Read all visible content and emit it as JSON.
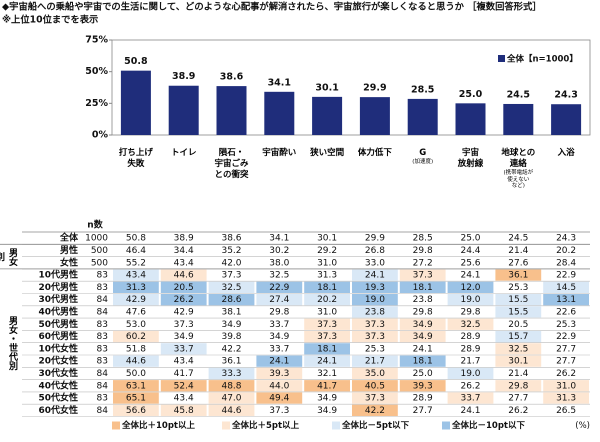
{
  "header": {
    "title": "◆宇宙船への乗船や宇宙での生活に関して、どのような心配事が解消されたら、宇宙旅行が楽しくなると思うか ［複数回答形式］",
    "note": "※上位10位までを表示"
  },
  "chart_data": {
    "type": "bar",
    "categories": [
      "打ち上げ\n失敗",
      "トイレ",
      "隕石・\n宇宙ごみ\nとの衝突",
      "宇宙酔い",
      "狭い空間",
      "体力低下",
      "G",
      "宇宙\n放射線",
      "地球との\n連絡",
      "入浴"
    ],
    "category_notes": [
      null,
      null,
      null,
      null,
      null,
      null,
      "(加速度)",
      null,
      "(携帯電話が\n使えない\nなど)",
      null
    ],
    "series": [
      {
        "name": "全体【n=1000】",
        "color": "#1f2d7b",
        "values": [
          50.8,
          38.9,
          38.6,
          34.1,
          30.1,
          29.9,
          28.5,
          25.0,
          24.5,
          24.3
        ],
        "value_labels": [
          "50.8",
          "38.9",
          "38.6",
          "34.1",
          "30.1",
          "29.9",
          "28.5",
          "25.0",
          "24.5",
          "24.3"
        ]
      }
    ],
    "ylim": [
      0,
      75
    ],
    "yticks": [
      {
        "value": 0,
        "label": "0%"
      },
      {
        "value": 25,
        "label": "25%"
      },
      {
        "value": 50,
        "label": "50%"
      },
      {
        "value": 75,
        "label": "75%"
      }
    ],
    "legend": "top-right"
  },
  "table": {
    "n_header": "n数",
    "total": {
      "label": "全体",
      "n": 1000,
      "values": [
        "50.8",
        "38.9",
        "38.6",
        "34.1",
        "30.1",
        "29.9",
        "28.5",
        "25.0",
        "24.5",
        "24.3"
      ]
    },
    "groups": [
      {
        "label": "男女別",
        "rows": [
          {
            "label": "男性",
            "n": 500,
            "values": [
              "46.4",
              "34.4",
              "35.2",
              "30.2",
              "29.2",
              "26.8",
              "29.8",
              "24.4",
              "21.4",
              "20.2"
            ]
          },
          {
            "label": "女性",
            "n": 500,
            "values": [
              "55.2",
              "43.4",
              "42.0",
              "38.0",
              "31.0",
              "33.0",
              "27.2",
              "25.6",
              "27.6",
              "28.4"
            ]
          }
        ]
      },
      {
        "label": "男女・世代別",
        "rows": [
          {
            "label": "10代男性",
            "n": 83,
            "values": [
              "43.4",
              "44.6",
              "37.3",
              "32.5",
              "31.3",
              "24.1",
              "37.3",
              "24.1",
              "36.1",
              "22.9"
            ]
          },
          {
            "label": "20代男性",
            "n": 83,
            "values": [
              "31.3",
              "20.5",
              "32.5",
              "22.9",
              "18.1",
              "19.3",
              "18.1",
              "12.0",
              "25.3",
              "14.5"
            ]
          },
          {
            "label": "30代男性",
            "n": 84,
            "values": [
              "42.9",
              "26.2",
              "28.6",
              "27.4",
              "20.2",
              "19.0",
              "23.8",
              "19.0",
              "15.5",
              "13.1"
            ]
          },
          {
            "label": "40代男性",
            "n": 84,
            "values": [
              "47.6",
              "42.9",
              "38.1",
              "29.8",
              "31.0",
              "23.8",
              "29.8",
              "29.8",
              "15.5",
              "22.6"
            ]
          },
          {
            "label": "50代男性",
            "n": 83,
            "values": [
              "53.0",
              "37.3",
              "34.9",
              "33.7",
              "37.3",
              "37.3",
              "34.9",
              "32.5",
              "20.5",
              "25.3"
            ]
          },
          {
            "label": "60代男性",
            "n": 83,
            "values": [
              "60.2",
              "34.9",
              "39.8",
              "34.9",
              "37.3",
              "37.3",
              "34.9",
              "28.9",
              "15.7",
              "22.9"
            ]
          },
          {
            "label": "10代女性",
            "n": 83,
            "values": [
              "51.8",
              "33.7",
              "42.2",
              "33.7",
              "18.1",
              "25.3",
              "24.1",
              "28.9",
              "32.5",
              "27.7"
            ]
          },
          {
            "label": "20代女性",
            "n": 83,
            "values": [
              "44.6",
              "43.4",
              "36.1",
              "24.1",
              "24.1",
              "21.7",
              "18.1",
              "21.7",
              "30.1",
              "27.7"
            ]
          },
          {
            "label": "30代女性",
            "n": 84,
            "values": [
              "50.0",
              "41.7",
              "33.3",
              "39.3",
              "32.1",
              "35.0",
              "25.0",
              "19.0",
              "21.4",
              "26.2"
            ]
          },
          {
            "label": "40代女性",
            "n": 84,
            "values": [
              "63.1",
              "52.4",
              "48.8",
              "44.0",
              "41.7",
              "40.5",
              "39.3",
              "26.2",
              "29.8",
              "31.0"
            ]
          },
          {
            "label": "50代女性",
            "n": 83,
            "values": [
              "65.1",
              "43.4",
              "47.0",
              "49.4",
              "34.9",
              "37.3",
              "28.9",
              "33.7",
              "27.7",
              "31.3"
            ]
          },
          {
            "label": "60代女性",
            "n": 84,
            "values": [
              "56.6",
              "45.8",
              "44.6",
              "37.3",
              "34.9",
              "42.2",
              "27.7",
              "24.1",
              "26.2",
              "26.5"
            ]
          }
        ]
      }
    ]
  },
  "legend": {
    "items": [
      {
        "label": "全体比＋10pt以上",
        "threshold": 10,
        "color": "#f8c08c"
      },
      {
        "label": "全体比＋5pt以上",
        "threshold": 5,
        "color": "#fde6d2"
      },
      {
        "label": "全体比－5pt以下",
        "threshold": -5,
        "color": "#d9e8f6"
      },
      {
        "label": "全体比－10pt以下",
        "threshold": -10,
        "color": "#9cc3e6"
      }
    ],
    "unit": "(%)"
  }
}
